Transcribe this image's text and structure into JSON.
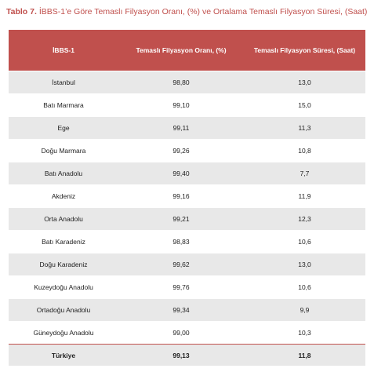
{
  "caption": {
    "label": "Tablo 7.",
    "text": "İBBS-1’e Göre Temaslı Filyasyon Oranı, (%) ve Ortalama Temaslı Filyasyon Süresi, (Saat)"
  },
  "colors": {
    "header_bg": "#c0504d",
    "stripe": "#e8e8e8",
    "caption": "#c0504d"
  },
  "table": {
    "headers": [
      "İBBS-1",
      "Temaslı Filyasyon Oranı, (%)",
      "Temaslı Filyasyon Süresi, (Saat)"
    ],
    "rows": [
      [
        "İstanbul",
        "98,80",
        "13,0"
      ],
      [
        "Batı Marmara",
        "99,10",
        "15,0"
      ],
      [
        "Ege",
        "99,11",
        "11,3"
      ],
      [
        "Doğu Marmara",
        "99,26",
        "10,8"
      ],
      [
        "Batı Anadolu",
        "99,40",
        "7,7"
      ],
      [
        "Akdeniz",
        "99,16",
        "11,9"
      ],
      [
        "Orta Anadolu",
        "99,21",
        "12,3"
      ],
      [
        "Batı Karadeniz",
        "98,83",
        "10,6"
      ],
      [
        "Doğu Karadeniz",
        "99,62",
        "13,0"
      ],
      [
        "Kuzeydoğu Anadolu",
        "99,76",
        "10,6"
      ],
      [
        "Ortadoğu Anadolu",
        "99,34",
        "9,9"
      ],
      [
        "Güneydoğu Anadolu",
        "99,00",
        "10,3"
      ]
    ],
    "total": [
      "Türkiye",
      "99,13",
      "11,8"
    ]
  }
}
